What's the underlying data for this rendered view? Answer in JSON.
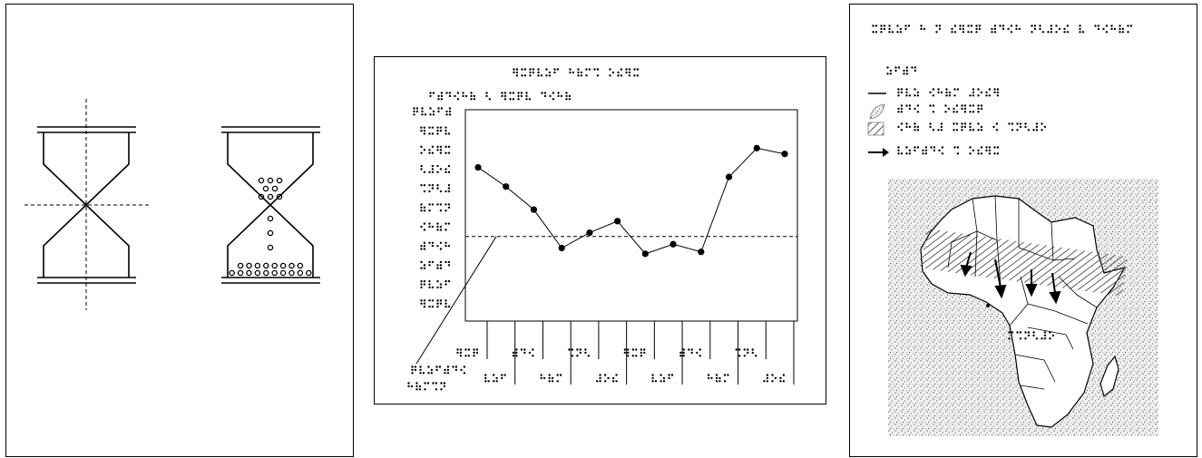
{
  "hourglass_panel": {
    "dots_upper_rows": [
      3,
      2,
      3
    ],
    "dots_stream": 3,
    "dots_bottom_rows": [
      10,
      8
    ]
  },
  "chart_data": {
    "type": "line",
    "title": "",
    "xlabel": "",
    "ylabel": "",
    "labels_text": "braille",
    "n_points": 12,
    "values": [
      8.0,
      7.0,
      5.8,
      3.8,
      4.6,
      5.2,
      3.5,
      4.0,
      3.6,
      7.5,
      9.0,
      8.7
    ],
    "reference_line": 4.4,
    "y_ticks": 11,
    "x_ticks": 12,
    "grid": false,
    "marker": "filled-circle",
    "color": "#000000"
  },
  "map_panel": {
    "legend": [
      {
        "symbol": "solid-line"
      },
      {
        "symbol": "stippled-leaf"
      },
      {
        "symbol": "hatched-box"
      },
      {
        "symbol": "arrow"
      }
    ],
    "colors": {
      "line": "#000000",
      "stipple": "#888888",
      "hatch": "#555555",
      "land": "#ffffff"
    }
  }
}
